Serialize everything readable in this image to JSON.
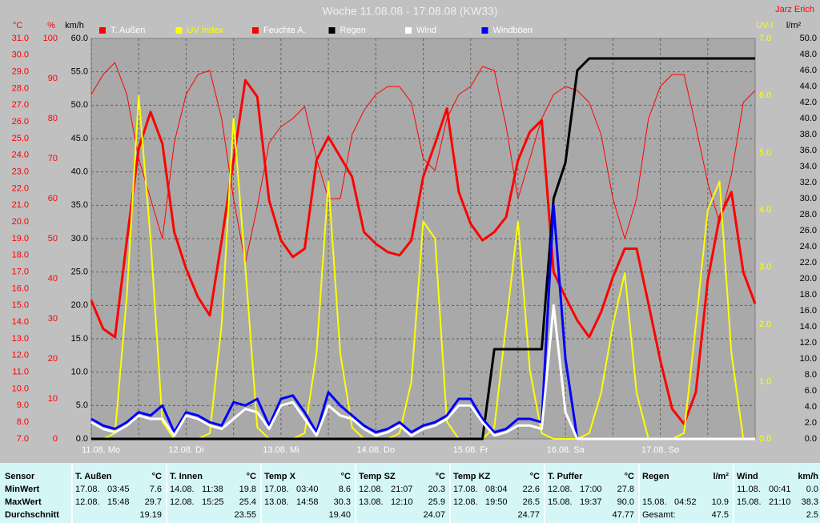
{
  "chart_data": {
    "type": "line",
    "title": "Woche 11.08.08 - 17.08.08 (KW33)",
    "author": "Jarz Erich",
    "xlim": [
      0,
      168
    ],
    "xticks": [
      {
        "value": 0,
        "label": "11.08. Mo"
      },
      {
        "value": 24,
        "label": "12.08. Di"
      },
      {
        "value": 48,
        "label": "13.08. Mi"
      },
      {
        "value": 72,
        "label": "14.08. Do"
      },
      {
        "value": 96,
        "label": "15.08. Fr"
      },
      {
        "value": 120,
        "label": "16.08. Sa"
      },
      {
        "value": 144,
        "label": "17.08. So"
      }
    ],
    "xgrid": [
      12,
      36,
      60,
      84,
      108,
      132,
      156
    ],
    "grid_axis": "wind",
    "axes": {
      "temp": {
        "label": "°C",
        "color": "#ff0000",
        "side": "left",
        "lim": [
          7,
          31
        ],
        "ticks": [
          {
            "value": 7,
            "label": "7.0"
          },
          {
            "value": 8,
            "label": "8.0"
          },
          {
            "value": 9,
            "label": "9.0"
          },
          {
            "value": 10,
            "label": "10.0"
          },
          {
            "value": 11,
            "label": "11.0"
          },
          {
            "value": 12,
            "label": "12.0"
          },
          {
            "value": 13,
            "label": "13.0"
          },
          {
            "value": 14,
            "label": "14.0"
          },
          {
            "value": 15,
            "label": "15.0"
          },
          {
            "value": 16,
            "label": "16.0"
          },
          {
            "value": 17,
            "label": "17.0"
          },
          {
            "value": 18,
            "label": "18.0"
          },
          {
            "value": 19,
            "label": "19.0"
          },
          {
            "value": 20,
            "label": "20.0"
          },
          {
            "value": 21,
            "label": "21.0"
          },
          {
            "value": 22,
            "label": "22.0"
          },
          {
            "value": 23,
            "label": "23.0"
          },
          {
            "value": 24,
            "label": "24.0"
          },
          {
            "value": 25,
            "label": "25.0"
          },
          {
            "value": 26,
            "label": "26.0"
          },
          {
            "value": 27,
            "label": "27.0"
          },
          {
            "value": 28,
            "label": "28.0"
          },
          {
            "value": 29,
            "label": "29.0"
          },
          {
            "value": 30,
            "label": "30.0"
          },
          {
            "value": 31,
            "label": "31.0"
          }
        ]
      },
      "hum": {
        "label": "%",
        "color": "#ff0000",
        "side": "left",
        "lim": [
          0,
          100
        ],
        "ticks": [
          0,
          10,
          20,
          30,
          40,
          50,
          60,
          70,
          80,
          90,
          100
        ]
      },
      "wind": {
        "label": "km/h",
        "color": "#000000",
        "side": "left",
        "lim": [
          0,
          60
        ],
        "ticks": [
          {
            "value": 0,
            "label": "0.0"
          },
          {
            "value": 5,
            "label": "5.0"
          },
          {
            "value": 10,
            "label": "10.0"
          },
          {
            "value": 15,
            "label": "15.0"
          },
          {
            "value": 20,
            "label": "20.0"
          },
          {
            "value": 25,
            "label": "25.0"
          },
          {
            "value": 30,
            "label": "30.0"
          },
          {
            "value": 35,
            "label": "35.0"
          },
          {
            "value": 40,
            "label": "40.0"
          },
          {
            "value": 45,
            "label": "45.0"
          },
          {
            "value": 50,
            "label": "50.0"
          },
          {
            "value": 55,
            "label": "55.0"
          },
          {
            "value": 60,
            "label": "60.0"
          }
        ]
      },
      "uv": {
        "label": "UV-I",
        "color": "#ffff00",
        "side": "right",
        "lim": [
          0,
          7
        ],
        "ticks": [
          {
            "value": 0,
            "label": "0.0"
          },
          {
            "value": 1,
            "label": "1.0"
          },
          {
            "value": 2,
            "label": "2.0"
          },
          {
            "value": 3,
            "label": "3.0"
          },
          {
            "value": 4,
            "label": "4.0"
          },
          {
            "value": 5,
            "label": "5.0"
          },
          {
            "value": 6,
            "label": "6.0"
          },
          {
            "value": 7,
            "label": "7.0"
          }
        ]
      },
      "rain": {
        "label": "l/m²",
        "color": "#000000",
        "side": "right",
        "lim": [
          0,
          50
        ],
        "ticks": [
          {
            "value": 0,
            "label": "0.0"
          },
          {
            "value": 2,
            "label": "2.0"
          },
          {
            "value": 4,
            "label": "4.0"
          },
          {
            "value": 6,
            "label": "6.0"
          },
          {
            "value": 8,
            "label": "8.0"
          },
          {
            "value": 10,
            "label": "10.0"
          },
          {
            "value": 12,
            "label": "12.0"
          },
          {
            "value": 14,
            "label": "14.0"
          },
          {
            "value": 16,
            "label": "16.0"
          },
          {
            "value": 18,
            "label": "18.0"
          },
          {
            "value": 20,
            "label": "20.0"
          },
          {
            "value": 22,
            "label": "22.0"
          },
          {
            "value": 24,
            "label": "24.0"
          },
          {
            "value": 26,
            "label": "26.0"
          },
          {
            "value": 28,
            "label": "28.0"
          },
          {
            "value": 30,
            "label": "30.0"
          },
          {
            "value": 32,
            "label": "32.0"
          },
          {
            "value": 34,
            "label": "34.0"
          },
          {
            "value": 36,
            "label": "36.0"
          },
          {
            "value": 38,
            "label": "38.0"
          },
          {
            "value": 40,
            "label": "40.0"
          },
          {
            "value": 42,
            "label": "42.0"
          },
          {
            "value": 44,
            "label": "44.0"
          },
          {
            "value": 46,
            "label": "46.0"
          },
          {
            "value": 48,
            "label": "48.0"
          },
          {
            "value": 50,
            "label": "50.0"
          }
        ]
      }
    },
    "x": [
      0,
      3,
      6,
      9,
      12,
      15,
      18,
      21,
      24,
      27,
      30,
      33,
      36,
      39,
      42,
      45,
      48,
      51,
      54,
      57,
      60,
      63,
      66,
      69,
      72,
      75,
      78,
      81,
      84,
      87,
      90,
      93,
      96,
      99,
      102,
      105,
      108,
      111,
      114,
      117,
      120,
      123,
      126,
      129,
      132,
      135,
      138,
      141,
      144,
      147,
      150,
      153,
      156,
      159,
      162,
      165,
      168
    ],
    "series": [
      {
        "name": "T. Außen",
        "color": "#ff0000",
        "axis": "temp",
        "width": 3,
        "values": [
          15.3,
          13.6,
          13.1,
          18.9,
          24.4,
          26.6,
          24.7,
          19.4,
          17.2,
          15.5,
          14.4,
          18.9,
          23.7,
          28.5,
          27.5,
          21.3,
          18.9,
          17.9,
          18.4,
          23.7,
          25.1,
          23.9,
          22.7,
          19.4,
          18.7,
          18.2,
          18.0,
          18.9,
          22.7,
          24.7,
          26.8,
          21.8,
          19.9,
          18.9,
          19.4,
          20.3,
          23.7,
          25.4,
          26.1,
          17.0,
          15.5,
          14.1,
          13.1,
          14.6,
          16.7,
          18.4,
          18.4,
          15.1,
          11.7,
          8.8,
          7.9,
          9.8,
          16.5,
          20.3,
          21.8,
          17.0,
          15.1
        ]
      },
      {
        "name": "UV Index",
        "color": "#ffff00",
        "axis": "uv",
        "width": 2,
        "values": [
          0,
          0,
          0.1,
          2.5,
          6.0,
          3.5,
          0.3,
          0,
          0,
          0,
          0.1,
          2.0,
          5.6,
          3.0,
          0.2,
          0,
          0,
          0,
          0.1,
          1.5,
          4.5,
          1.5,
          0.2,
          0,
          0,
          0,
          0.1,
          1.0,
          3.8,
          3.5,
          0.3,
          0,
          0,
          0,
          0.2,
          2.0,
          3.8,
          1.2,
          0.1,
          0,
          0,
          0,
          0.1,
          0.8,
          2.0,
          2.9,
          0.8,
          0,
          0,
          0,
          0.1,
          2.0,
          4.0,
          4.5,
          1.5,
          0,
          0
        ]
      },
      {
        "name": "Feuchte A.",
        "color": "#ff0000",
        "axis": "hum",
        "width": 1,
        "values": [
          86,
          91,
          94,
          86,
          70,
          60,
          50,
          74,
          86,
          91,
          92,
          80,
          60,
          44,
          58,
          74,
          78,
          80,
          83,
          70,
          60,
          60,
          76,
          82,
          86,
          88,
          88,
          84,
          70,
          67,
          80,
          86,
          88,
          93,
          92,
          78,
          60,
          70,
          80,
          86,
          88,
          87,
          84,
          76,
          60,
          50,
          60,
          80,
          88,
          91,
          91,
          78,
          64,
          54,
          66,
          84,
          87
        ]
      },
      {
        "name": "Regen",
        "color": "#000000",
        "axis": "rain",
        "width": 3,
        "values": [
          0,
          0,
          0,
          0,
          0,
          0,
          0,
          0,
          0,
          0,
          0,
          0,
          0,
          0,
          0,
          0,
          0,
          0,
          0,
          0,
          0,
          0,
          0,
          0,
          0,
          0,
          0,
          0,
          0,
          0,
          0,
          0,
          0,
          0,
          11.2,
          11.2,
          11.2,
          11.2,
          11.2,
          30.0,
          34.5,
          46.0,
          47.5,
          47.5,
          47.5,
          47.5,
          47.5,
          47.5,
          47.5,
          47.5,
          47.5,
          47.5,
          47.5,
          47.5,
          47.5,
          47.5,
          47.5
        ]
      },
      {
        "name": "Wind",
        "color": "#ffffff",
        "axis": "wind",
        "width": 3,
        "values": [
          2.5,
          1.5,
          1.0,
          2.0,
          3.5,
          3.0,
          3.0,
          0.5,
          3.5,
          3.0,
          2.0,
          1.5,
          3.0,
          4.5,
          4.0,
          1.5,
          5.0,
          5.5,
          3.0,
          0.5,
          5.0,
          3.5,
          3.0,
          1.5,
          0.5,
          1.0,
          2.0,
          0.5,
          1.5,
          2.0,
          3.0,
          5.0,
          5.0,
          2.5,
          0.5,
          1.0,
          2.0,
          2.0,
          1.5,
          20.0,
          4.0,
          0,
          0,
          0,
          0,
          0,
          0,
          0,
          0,
          0,
          0,
          0,
          0,
          0,
          0,
          0,
          0
        ]
      },
      {
        "name": "Windböen",
        "color": "#0000ff",
        "axis": "wind",
        "width": 3,
        "values": [
          3.0,
          2.0,
          1.5,
          2.5,
          4.0,
          3.5,
          5.0,
          1.0,
          4.0,
          3.5,
          2.5,
          2.0,
          5.5,
          5.0,
          6.0,
          2.0,
          6.0,
          6.5,
          4.0,
          1.0,
          7.0,
          5.0,
          3.5,
          2.0,
          1.0,
          1.5,
          2.5,
          1.0,
          2.0,
          2.5,
          3.5,
          6.0,
          6.0,
          3.0,
          1.0,
          1.5,
          3.0,
          3.0,
          2.5,
          35.0,
          12.0,
          0,
          0,
          0,
          0,
          0,
          0,
          0,
          0,
          0,
          0,
          0,
          0,
          0,
          0,
          0,
          0
        ]
      }
    ]
  },
  "table": {
    "row_labels": [
      "Sensor",
      "MinWert",
      "MaxWert",
      "Durchschnitt"
    ],
    "columns": [
      {
        "name": "T. Außen",
        "unit": "°C",
        "min": {
          "date": "17.08.",
          "time": "03:45",
          "value": "7.6"
        },
        "max": {
          "date": "12.08.",
          "time": "15:48",
          "value": "29.7"
        },
        "avg": {
          "value": "19.19"
        }
      },
      {
        "name": "T. Innen",
        "unit": "°C",
        "min": {
          "date": "14.08.",
          "time": "11:38",
          "value": "19.8"
        },
        "max": {
          "date": "12.08.",
          "time": "15:25",
          "value": "25.4"
        },
        "avg": {
          "value": "23.55"
        }
      },
      {
        "name": "Temp X",
        "unit": "°C",
        "min": {
          "date": "17.08.",
          "time": "03:40",
          "value": "8.6"
        },
        "max": {
          "date": "13.08.",
          "time": "14:58",
          "value": "30.3"
        },
        "avg": {
          "value": "19.40"
        }
      },
      {
        "name": "Temp SZ",
        "unit": "°C",
        "min": {
          "date": "12.08.",
          "time": "21:07",
          "value": "20.3"
        },
        "max": {
          "date": "13.08.",
          "time": "12:10",
          "value": "25.9"
        },
        "avg": {
          "value": "24.07"
        }
      },
      {
        "name": "Temp KZ",
        "unit": "°C",
        "min": {
          "date": "17.08.",
          "time": "08:04",
          "value": "22.6"
        },
        "max": {
          "date": "12.08.",
          "time": "19:50",
          "value": "26.5"
        },
        "avg": {
          "value": "24.77"
        }
      },
      {
        "name": "T. Puffer",
        "unit": "°C",
        "min": {
          "date": "12.08.",
          "time": "17:00",
          "value": "27.8"
        },
        "max": {
          "date": "15.08.",
          "time": "19:37",
          "value": "90.0"
        },
        "avg": {
          "value": "47.77"
        }
      },
      {
        "name": "Regen",
        "unit": "l/m²",
        "max": {
          "date": "15.08.",
          "time": "04:52",
          "value": "10.9"
        },
        "avg": {
          "label": "Gesamt:",
          "value": "47.5"
        }
      },
      {
        "name": "Wind",
        "unit": "km/h",
        "min": {
          "date": "11.08.",
          "time": "00:41",
          "value": "0.0"
        },
        "max": {
          "date": "15.08.",
          "time": "21:10",
          "value": "38.3"
        },
        "avg": {
          "value": "2.5"
        }
      }
    ]
  }
}
